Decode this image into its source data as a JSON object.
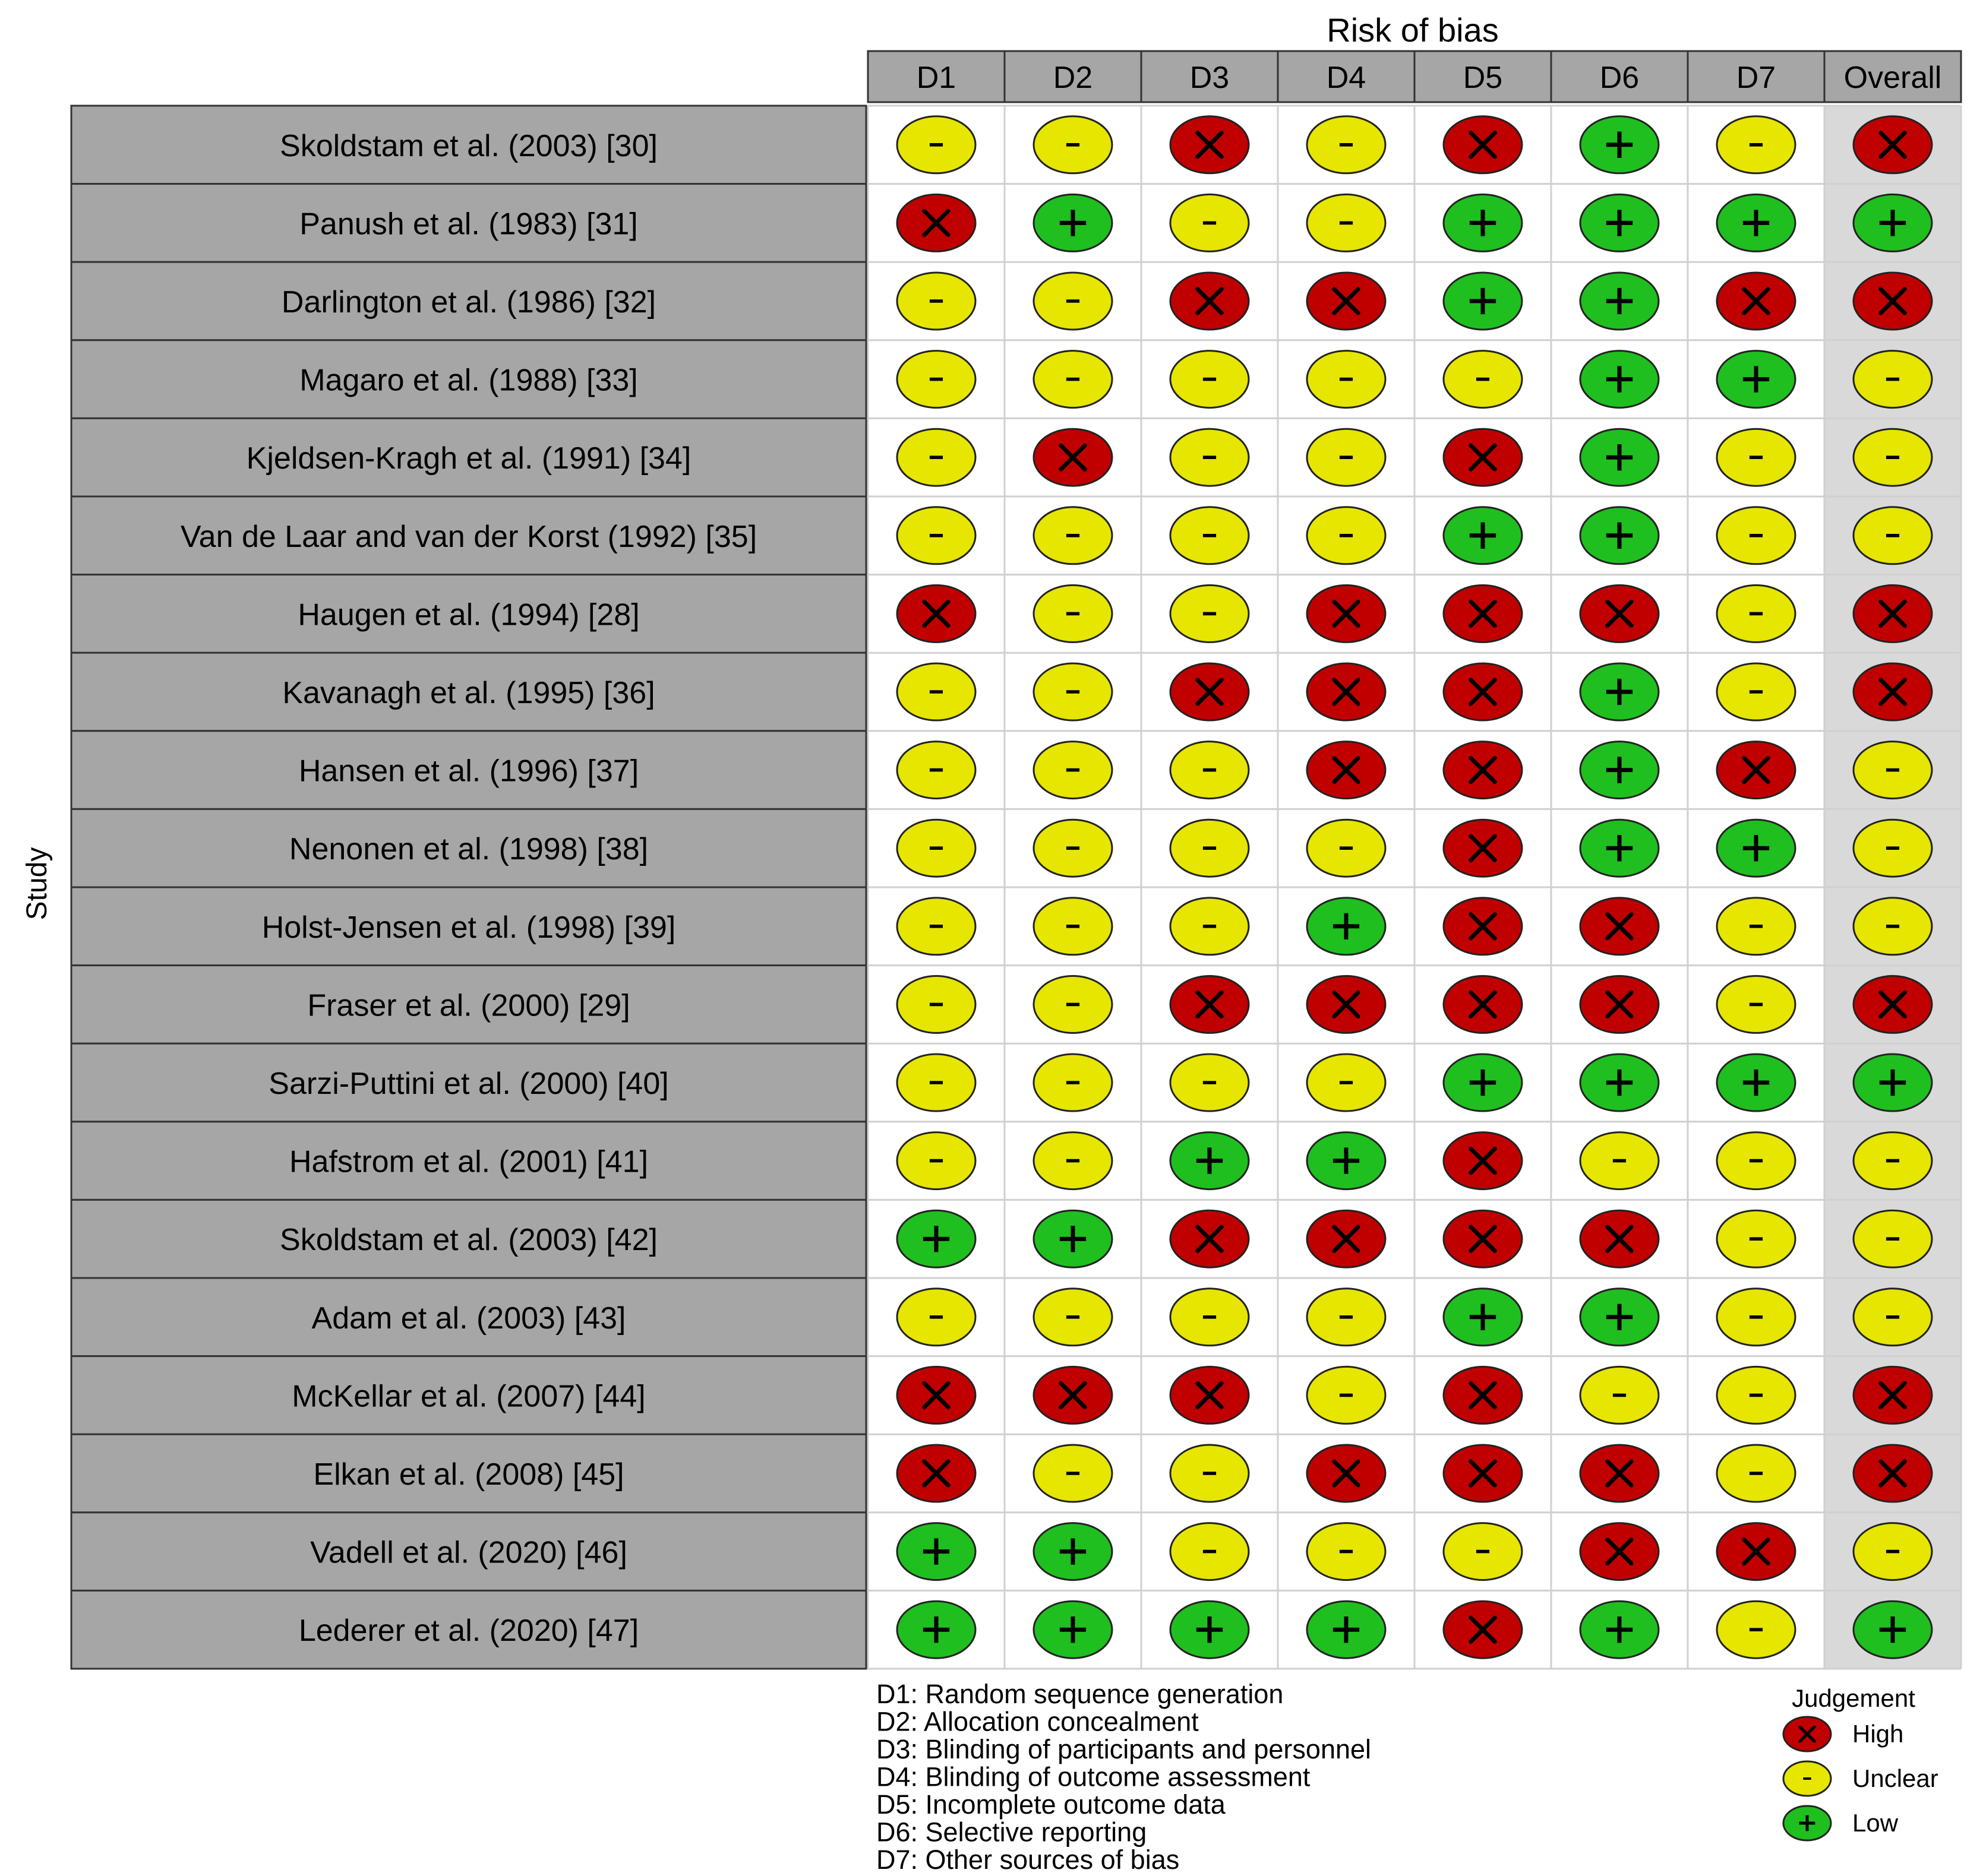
{
  "chart_data": {
    "type": "table",
    "title": "Risk of bias",
    "ylabel": "Study",
    "columns": [
      "D1",
      "D2",
      "D3",
      "D4",
      "D5",
      "D6",
      "D7",
      "Overall"
    ],
    "studies": [
      "Skoldstam et al. (2003) [30]",
      "Panush et al. (1983) [31]",
      "Darlington et al. (1986) [32]",
      "Magaro et al. (1988) [33]",
      "Kjeldsen-Kragh et al. (1991) [34]",
      "Van de Laar and van der Korst (1992) [35]",
      "Haugen et al. (1994) [28]",
      "Kavanagh et al. (1995) [36]",
      "Hansen et al. (1996) [37]",
      "Nenonen et al. (1998) [38]",
      "Holst-Jensen et al. (1998) [39]",
      "Fraser et al. (2000) [29]",
      "Sarzi-Puttini et al. (2000) [40]",
      "Hafstrom et al. (2001) [41]",
      "Skoldstam et al. (2003) [42]",
      "Adam et al. (2003) [43]",
      "McKellar et al. (2007) [44]",
      "Elkan et al. (2008) [45]",
      "Vadell et al. (2020) [46]",
      "Lederer et al.  (2020) [47]"
    ],
    "judgements": [
      [
        "U",
        "U",
        "H",
        "U",
        "H",
        "L",
        "U",
        "H"
      ],
      [
        "H",
        "L",
        "U",
        "U",
        "L",
        "L",
        "L",
        "L"
      ],
      [
        "U",
        "U",
        "H",
        "H",
        "L",
        "L",
        "H",
        "H"
      ],
      [
        "U",
        "U",
        "U",
        "U",
        "U",
        "L",
        "L",
        "U"
      ],
      [
        "U",
        "H",
        "U",
        "U",
        "H",
        "L",
        "U",
        "U"
      ],
      [
        "U",
        "U",
        "U",
        "U",
        "L",
        "L",
        "U",
        "U"
      ],
      [
        "H",
        "U",
        "U",
        "H",
        "H",
        "H",
        "U",
        "H"
      ],
      [
        "U",
        "U",
        "H",
        "H",
        "H",
        "L",
        "U",
        "H"
      ],
      [
        "U",
        "U",
        "U",
        "H",
        "H",
        "L",
        "H",
        "U"
      ],
      [
        "U",
        "U",
        "U",
        "U",
        "H",
        "L",
        "L",
        "U"
      ],
      [
        "U",
        "U",
        "U",
        "L",
        "H",
        "H",
        "U",
        "U"
      ],
      [
        "U",
        "U",
        "H",
        "H",
        "H",
        "H",
        "U",
        "H"
      ],
      [
        "U",
        "U",
        "U",
        "U",
        "L",
        "L",
        "L",
        "L"
      ],
      [
        "U",
        "U",
        "L",
        "L",
        "H",
        "U",
        "U",
        "U"
      ],
      [
        "L",
        "L",
        "H",
        "H",
        "H",
        "H",
        "U",
        "U"
      ],
      [
        "U",
        "U",
        "U",
        "U",
        "L",
        "L",
        "U",
        "U"
      ],
      [
        "H",
        "H",
        "H",
        "U",
        "H",
        "U",
        "U",
        "H"
      ],
      [
        "H",
        "U",
        "U",
        "H",
        "H",
        "H",
        "U",
        "H"
      ],
      [
        "L",
        "L",
        "U",
        "U",
        "U",
        "H",
        "H",
        "U"
      ],
      [
        "L",
        "L",
        "L",
        "L",
        "H",
        "L",
        "U",
        "L"
      ]
    ],
    "domain_descriptions": [
      "D1: Random sequence generation",
      "D2: Allocation concealment",
      "D3: Blinding of participants and personnel",
      "D4: Blinding of outcome assessment",
      "D5: Incomplete outcome data",
      "D6: Selective reporting",
      "D7: Other sources of bias"
    ],
    "legend": {
      "title": "Judgement",
      "position": "bottom-right",
      "items": [
        {
          "code": "H",
          "label": "High",
          "symbol": "X",
          "color": "#C00000"
        },
        {
          "code": "U",
          "label": "Unclear",
          "symbol": "-",
          "color": "#E6E600"
        },
        {
          "code": "L",
          "label": "Low",
          "symbol": "+",
          "color": "#1FBF1F"
        }
      ]
    }
  },
  "colors": {
    "header_fill": "#A6A6A6",
    "label_fill": "#A6A6A6",
    "overall_fill": "#D9D9D9",
    "grid": "#9A9A9A"
  }
}
